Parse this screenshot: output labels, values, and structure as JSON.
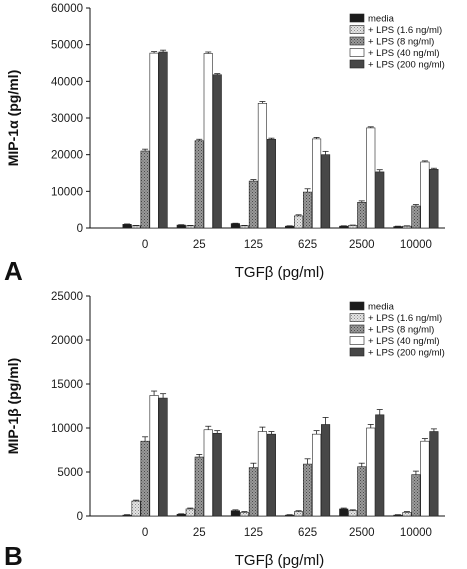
{
  "chart_data": [
    {
      "type": "bar",
      "panel_label": "A",
      "xlabel": "TGFβ (pg/ml)",
      "ylabel": "MIP-1α (pg/ml)",
      "ylim": [
        0,
        60000
      ],
      "yticks": [
        "0",
        "10000",
        "20000",
        "30000",
        "40000",
        "50000",
        "60000"
      ],
      "categories": [
        "0",
        "25",
        "125",
        "625",
        "2500",
        "10000"
      ],
      "legend_position": "top-right",
      "error_bars": true,
      "series": [
        {
          "name": "media",
          "color": "#1c1c1c",
          "pattern": "solid",
          "values": [
            1000,
            800,
            1200,
            500,
            500,
            400
          ],
          "errors": [
            100,
            100,
            100,
            100,
            100,
            100
          ]
        },
        {
          "name": "+ LPS (1.6 ng/ml)",
          "color": "#d6d6d6",
          "pattern": "light-dots",
          "values": [
            600,
            600,
            600,
            3300,
            700,
            500
          ],
          "errors": [
            100,
            100,
            100,
            300,
            100,
            100
          ]
        },
        {
          "name": "+ LPS (8 ng/ml)",
          "color": "#8c8c8c",
          "pattern": "dark-dots",
          "values": [
            21000,
            23800,
            12800,
            9800,
            7000,
            6000
          ],
          "errors": [
            500,
            400,
            400,
            900,
            400,
            400
          ]
        },
        {
          "name": "+ LPS (40 ng/ml)",
          "color": "#ffffff",
          "pattern": "solid",
          "values": [
            47700,
            47600,
            34000,
            24300,
            27300,
            18000
          ],
          "errors": [
            400,
            400,
            500,
            400,
            300,
            300
          ]
        },
        {
          "name": "+ LPS (200 ng/ml)",
          "color": "#474747",
          "pattern": "solid",
          "values": [
            48000,
            41800,
            24200,
            20000,
            15300,
            16000
          ],
          "errors": [
            500,
            300,
            300,
            900,
            600,
            300
          ]
        }
      ]
    },
    {
      "type": "bar",
      "panel_label": "B",
      "xlabel": "TGFβ (pg/ml)",
      "ylabel": "MIP-1β (pg/ml)",
      "ylim": [
        0,
        25000
      ],
      "yticks": [
        "0",
        "5000",
        "10000",
        "15000",
        "20000",
        "25000"
      ],
      "categories": [
        "0",
        "25",
        "125",
        "625",
        "2500",
        "10000"
      ],
      "legend_position": "top-right",
      "error_bars": true,
      "series": [
        {
          "name": "media",
          "color": "#1c1c1c",
          "pattern": "solid",
          "values": [
            100,
            200,
            600,
            100,
            800,
            100
          ],
          "errors": [
            50,
            50,
            100,
            50,
            100,
            50
          ]
        },
        {
          "name": "+ LPS (1.6 ng/ml)",
          "color": "#d6d6d6",
          "pattern": "light-dots",
          "values": [
            1700,
            800,
            400,
            500,
            600,
            400
          ],
          "errors": [
            100,
            100,
            100,
            100,
            100,
            100
          ]
        },
        {
          "name": "+ LPS (8 ng/ml)",
          "color": "#8c8c8c",
          "pattern": "dark-dots",
          "values": [
            8500,
            6700,
            5500,
            5900,
            5600,
            4700
          ],
          "errors": [
            500,
            300,
            500,
            600,
            400,
            400
          ]
        },
        {
          "name": "+ LPS (40 ng/ml)",
          "color": "#ffffff",
          "pattern": "solid",
          "values": [
            13700,
            9800,
            9600,
            9300,
            10000,
            8500
          ],
          "errors": [
            500,
            400,
            500,
            400,
            400,
            300
          ]
        },
        {
          "name": "+ LPS (200 ng/ml)",
          "color": "#474747",
          "pattern": "solid",
          "values": [
            13400,
            9400,
            9300,
            10400,
            11500,
            9600
          ],
          "errors": [
            500,
            300,
            300,
            800,
            600,
            300
          ]
        }
      ]
    }
  ]
}
